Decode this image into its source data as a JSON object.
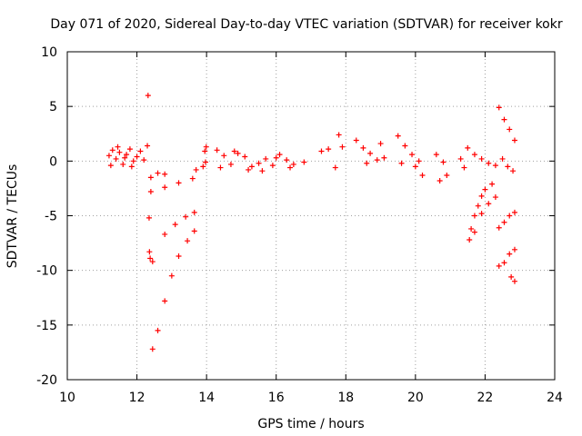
{
  "chart_data": {
    "type": "scatter",
    "title": "Day 071 of 2020, Sidereal Day-to-day VTEC variation (SDTVAR) for receiver kokr",
    "xlabel": "GPS time / hours",
    "ylabel": "SDTVAR / TECUs",
    "xlim": [
      10,
      24
    ],
    "ylim": [
      -20,
      10
    ],
    "xticks": [
      10,
      12,
      14,
      16,
      18,
      20,
      22,
      24
    ],
    "yticks": [
      -20,
      -15,
      -10,
      -5,
      0,
      5,
      10
    ],
    "xtick_labels": [
      "10",
      "12",
      "14",
      "16",
      "18",
      "20",
      "22",
      "24"
    ],
    "ytick_labels": [
      "-20",
      "-15",
      "-10",
      "-5",
      "0",
      "5",
      "10"
    ],
    "grid": true,
    "marker": "+",
    "color": "#ff0000",
    "series": [
      {
        "name": "SDTVAR",
        "points": [
          [
            11.2,
            0.5
          ],
          [
            11.3,
            1.0
          ],
          [
            11.4,
            0.2
          ],
          [
            11.5,
            0.8
          ],
          [
            11.6,
            -0.3
          ],
          [
            11.7,
            0.6
          ],
          [
            11.8,
            1.1
          ],
          [
            11.9,
            0.0
          ],
          [
            12.0,
            0.4
          ],
          [
            12.1,
            0.9
          ],
          [
            12.2,
            0.1
          ],
          [
            11.25,
            -0.4
          ],
          [
            11.45,
            1.3
          ],
          [
            11.65,
            0.3
          ],
          [
            11.85,
            -0.5
          ],
          [
            12.3,
            1.4
          ],
          [
            12.32,
            6.0
          ],
          [
            12.35,
            -5.2
          ],
          [
            12.36,
            -8.3
          ],
          [
            12.38,
            -8.9
          ],
          [
            12.4,
            -1.5
          ],
          [
            12.6,
            -1.1
          ],
          [
            12.8,
            -1.2
          ],
          [
            12.4,
            -2.8
          ],
          [
            12.8,
            -2.4
          ],
          [
            13.2,
            -2.0
          ],
          [
            13.6,
            -1.6
          ],
          [
            13.7,
            -0.8
          ],
          [
            13.9,
            -0.5
          ],
          [
            12.45,
            -9.2
          ],
          [
            12.8,
            -6.7
          ],
          [
            13.1,
            -5.8
          ],
          [
            13.4,
            -5.1
          ],
          [
            13.65,
            -4.7
          ],
          [
            12.45,
            -17.2
          ],
          [
            12.6,
            -15.5
          ],
          [
            12.8,
            -12.8
          ],
          [
            13.0,
            -10.5
          ],
          [
            13.2,
            -8.7
          ],
          [
            13.45,
            -7.3
          ],
          [
            13.65,
            -6.4
          ],
          [
            13.95,
            0.9
          ],
          [
            13.97,
            -0.1
          ],
          [
            13.99,
            1.3
          ],
          [
            14.3,
            1.0
          ],
          [
            14.5,
            0.5
          ],
          [
            14.7,
            -0.3
          ],
          [
            14.9,
            0.7
          ],
          [
            15.1,
            0.4
          ],
          [
            15.3,
            -0.5
          ],
          [
            15.5,
            -0.2
          ],
          [
            15.7,
            0.2
          ],
          [
            15.9,
            -0.4
          ],
          [
            16.1,
            0.6
          ],
          [
            16.3,
            0.1
          ],
          [
            16.5,
            -0.3
          ],
          [
            16.8,
            -0.1
          ],
          [
            14.4,
            -0.6
          ],
          [
            14.8,
            0.9
          ],
          [
            15.2,
            -0.8
          ],
          [
            15.6,
            -0.9
          ],
          [
            16.0,
            0.3
          ],
          [
            16.4,
            -0.6
          ],
          [
            17.3,
            0.9
          ],
          [
            17.5,
            1.1
          ],
          [
            17.7,
            -0.6
          ],
          [
            17.8,
            2.4
          ],
          [
            17.9,
            1.3
          ],
          [
            18.3,
            1.9
          ],
          [
            18.5,
            1.2
          ],
          [
            18.7,
            0.7
          ],
          [
            18.9,
            0.1
          ],
          [
            19.1,
            0.3
          ],
          [
            18.6,
            -0.2
          ],
          [
            19.0,
            1.6
          ],
          [
            19.5,
            2.3
          ],
          [
            19.7,
            1.4
          ],
          [
            19.9,
            0.6
          ],
          [
            20.1,
            0.0
          ],
          [
            19.6,
            -0.2
          ],
          [
            20.0,
            -0.5
          ],
          [
            20.2,
            -1.3
          ],
          [
            20.6,
            0.6
          ],
          [
            20.8,
            -0.1
          ],
          [
            20.7,
            -1.8
          ],
          [
            20.9,
            -1.3
          ],
          [
            21.3,
            0.2
          ],
          [
            21.5,
            1.2
          ],
          [
            21.7,
            0.6
          ],
          [
            21.9,
            0.2
          ],
          [
            22.1,
            -0.2
          ],
          [
            22.3,
            -0.4
          ],
          [
            21.4,
            -0.6
          ],
          [
            21.55,
            -7.2
          ],
          [
            21.6,
            -6.2
          ],
          [
            21.7,
            -5.0
          ],
          [
            21.8,
            -4.1
          ],
          [
            21.9,
            -3.2
          ],
          [
            22.0,
            -2.6
          ],
          [
            22.2,
            -2.1
          ],
          [
            21.7,
            -6.5
          ],
          [
            21.9,
            -4.8
          ],
          [
            22.1,
            -3.9
          ],
          [
            22.3,
            -3.3
          ],
          [
            22.4,
            4.9
          ],
          [
            22.55,
            3.8
          ],
          [
            22.7,
            2.9
          ],
          [
            22.85,
            1.9
          ],
          [
            22.4,
            -6.1
          ],
          [
            22.55,
            -5.6
          ],
          [
            22.7,
            -5.0
          ],
          [
            22.85,
            -4.7
          ],
          [
            22.4,
            -9.6
          ],
          [
            22.55,
            -9.3
          ],
          [
            22.7,
            -8.5
          ],
          [
            22.85,
            -8.1
          ],
          [
            22.75,
            -10.6
          ],
          [
            22.85,
            -11.0
          ],
          [
            22.5,
            0.2
          ],
          [
            22.65,
            -0.5
          ],
          [
            22.8,
            -0.9
          ]
        ]
      }
    ]
  }
}
